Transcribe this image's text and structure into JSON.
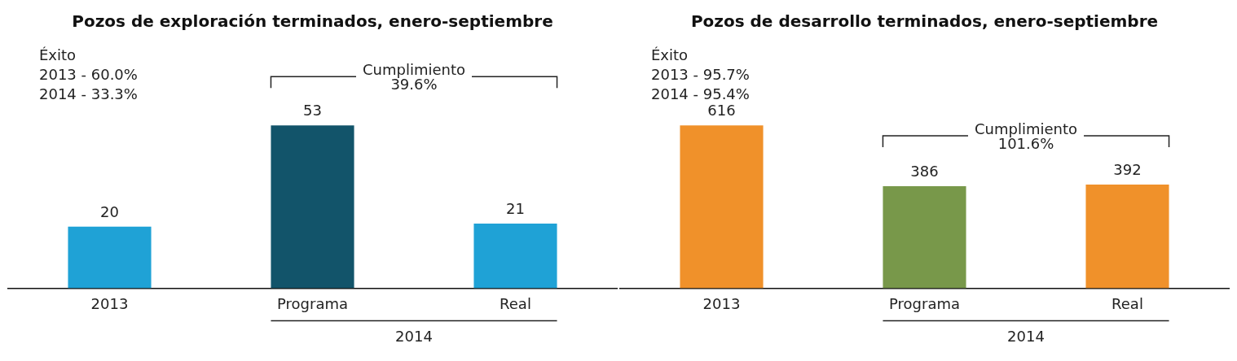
{
  "chart_data": [
    {
      "type": "bar",
      "title": "Pozos de exploración terminados, enero-septiembre",
      "categories": [
        "2013",
        "Programa",
        "Real"
      ],
      "values": [
        20,
        53,
        21
      ],
      "colors": [
        "#1fa2d6",
        "#12546a",
        "#1fa2d6"
      ],
      "data_labels": true,
      "grid": false,
      "legend": false,
      "annotations": [
        "Éxito\n2013 - 60.0%\n2014 - 33.3%",
        "Cumplimiento\n39.6%",
        "2014"
      ]
    },
    {
      "type": "bar",
      "title": "Pozos de desarrollo terminados, enero-septiembre",
      "categories": [
        "2013",
        "Programa",
        "Real"
      ],
      "values": [
        616,
        386,
        392
      ],
      "colors": [
        "#f0912a",
        "#78984a",
        "#f0912a"
      ],
      "data_labels": true,
      "grid": false,
      "legend": false,
      "annotations": [
        "Éxito\n2013 - 95.7%\n2014 - 95.4%",
        "Cumplimiento\n101.6%",
        "2014"
      ]
    }
  ]
}
